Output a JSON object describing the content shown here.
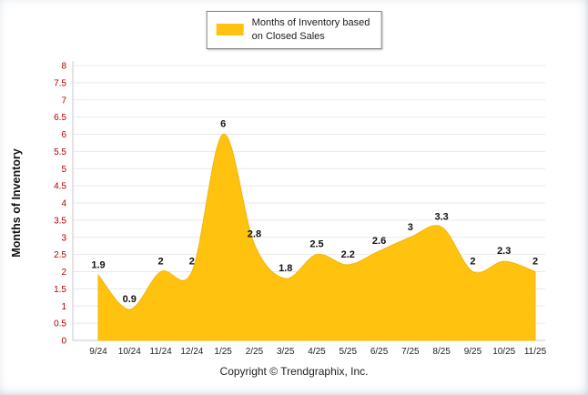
{
  "page": {
    "background": "#ffffff"
  },
  "legend": {
    "label_line1": "Months of Inventory based",
    "label_line2": "on Closed Sales"
  },
  "footer": {
    "copyright": "Copyright © Trendgraphix, Inc."
  },
  "chart_data": {
    "type": "area",
    "title": "",
    "legend": "Months of Inventory based on Closed Sales",
    "legend_position": "top",
    "xlabel": "",
    "ylabel": "Months of Inventory",
    "categories": [
      "9/24",
      "10/24",
      "11/24",
      "12/24",
      "1/25",
      "2/25",
      "3/25",
      "4/25",
      "5/25",
      "6/25",
      "7/25",
      "8/25",
      "9/25",
      "10/25",
      "11/25"
    ],
    "values": [
      1.9,
      0.9,
      2,
      2,
      6,
      2.8,
      1.8,
      2.5,
      2.2,
      2.6,
      3,
      3.3,
      2,
      2.3,
      2
    ],
    "ylim": [
      0,
      8
    ],
    "ytick_step": 0.5,
    "grid": true,
    "series_color": "#FFC20E",
    "series_edge_color": "#F3B50A",
    "axis_label_color": "#B00000",
    "x_label_color": "#222222",
    "data_label_color": "#111111"
  }
}
